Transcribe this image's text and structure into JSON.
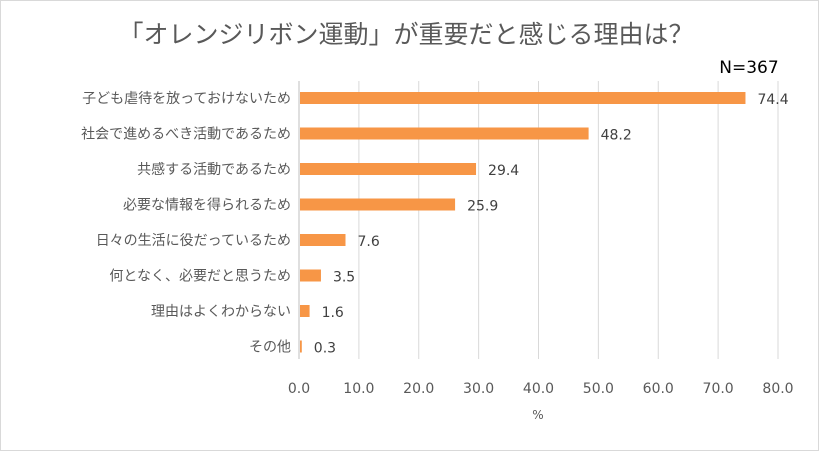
{
  "chart_data": {
    "type": "bar",
    "orientation": "horizontal",
    "title": "「オレンジリボン運動」が重要だと感じる理由は？",
    "sample_size": "N=367",
    "xlabel": "%",
    "categories": [
      "子ども虐待を放っておけないため",
      "社会で進めるべき活動であるため",
      "共感する活動であるため",
      "必要な情報を得られるため",
      "日々の生活に役だっているため",
      "何となく、必要だと思うため",
      "理由はよくわからない",
      "その他"
    ],
    "values": [
      74.4,
      48.2,
      29.4,
      25.9,
      7.6,
      3.5,
      1.6,
      0.3
    ],
    "value_labels": [
      "74.4",
      "48.2",
      "29.4",
      "25.9",
      "7.6",
      "3.5",
      "1.6",
      "0.3"
    ],
    "xlim": [
      0,
      80
    ],
    "xticks": [
      0,
      10,
      20,
      30,
      40,
      50,
      60,
      70,
      80
    ],
    "xtick_labels": [
      "0.0",
      "10.0",
      "20.0",
      "30.0",
      "40.0",
      "50.0",
      "60.0",
      "70.0",
      "80.0"
    ],
    "bar_color": "#f79646",
    "grid": "vertical",
    "legend": "none"
  }
}
